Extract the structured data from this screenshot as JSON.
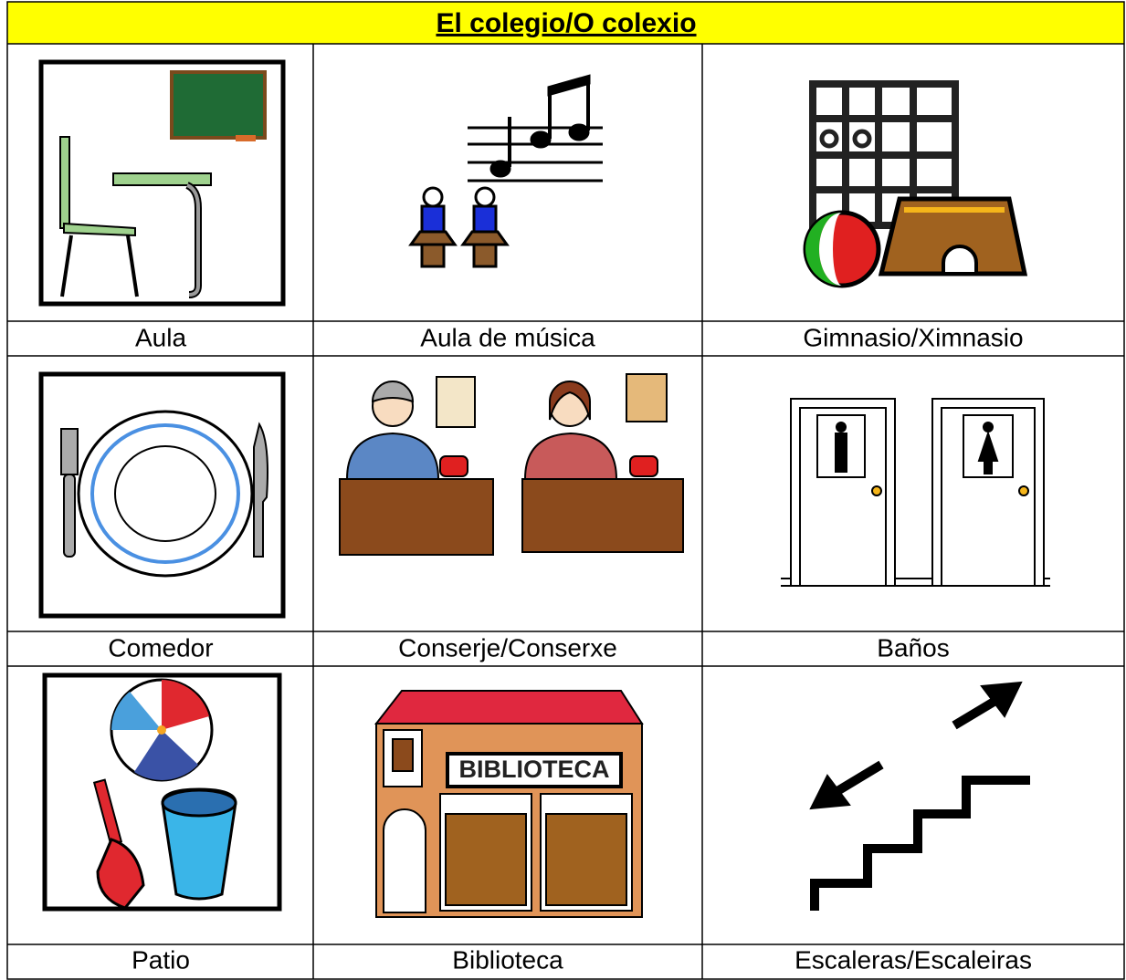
{
  "header": {
    "title": "El colegio/O colexio"
  },
  "table": {
    "rows": [
      [
        "Aula",
        "Aula de música",
        "Gimnasio/Ximnasio"
      ],
      [
        "Comedor",
        "Conserje/Conserxe",
        "Baños"
      ],
      [
        "Patio",
        "Biblioteca",
        "Escaleras/Escaleiras"
      ]
    ]
  },
  "signs": {
    "biblioteca": "BIBLIOTECA"
  }
}
